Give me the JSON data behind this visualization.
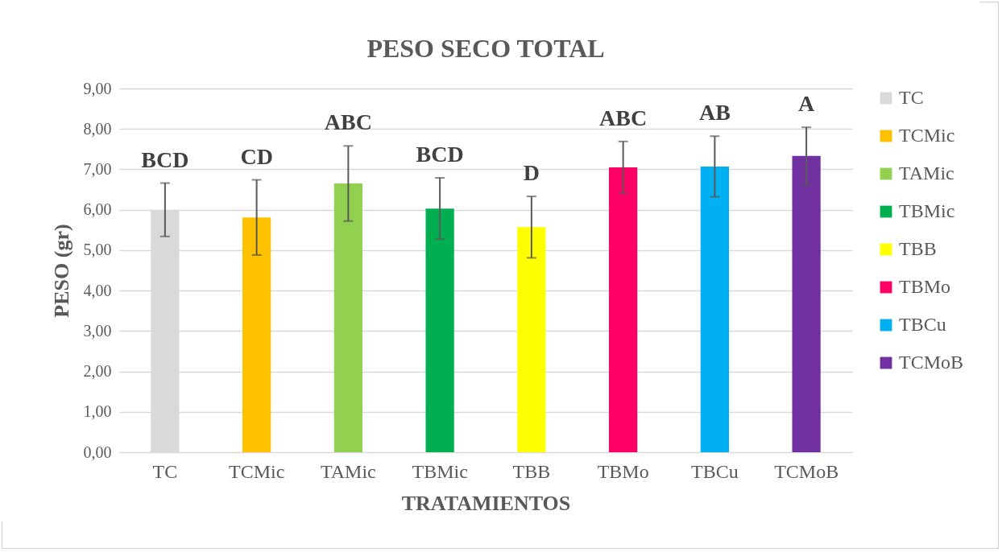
{
  "chart_data": {
    "type": "bar",
    "title": "PESO SECO TOTAL",
    "xlabel": "TRATAMIENTOS",
    "ylabel": "PESO (gr)",
    "categories": [
      "TC",
      "TCMic",
      "TAMic",
      "TBMic",
      "TBB",
      "TBMo",
      "TBCu",
      "TCMoB"
    ],
    "values": [
      6.0,
      5.81,
      6.65,
      6.03,
      5.57,
      7.05,
      7.07,
      7.33
    ],
    "errors": [
      0.66,
      0.93,
      0.93,
      0.76,
      0.76,
      0.64,
      0.75,
      0.71
    ],
    "colors": [
      "#d9d9d9",
      "#ffc000",
      "#92d050",
      "#00b050",
      "#ffff00",
      "#ff0066",
      "#00b0f0",
      "#7030a0"
    ],
    "ylim": [
      0,
      9
    ],
    "yticks": [
      {
        "value": 0,
        "label": "0,00"
      },
      {
        "value": 1,
        "label": "1,00"
      },
      {
        "value": 2,
        "label": "2,00"
      },
      {
        "value": 3,
        "label": "3,00"
      },
      {
        "value": 4,
        "label": "4,00"
      },
      {
        "value": 5,
        "label": "5,00"
      },
      {
        "value": 6,
        "label": "6,00"
      },
      {
        "value": 7,
        "label": "7,00"
      },
      {
        "value": 8,
        "label": "8,00"
      },
      {
        "value": 9,
        "label": "9,00"
      }
    ],
    "grid": "y",
    "annotations": [
      "BCD",
      "CD",
      "ABC",
      "BCD",
      "D",
      "ABC",
      "AB",
      "A"
    ]
  }
}
